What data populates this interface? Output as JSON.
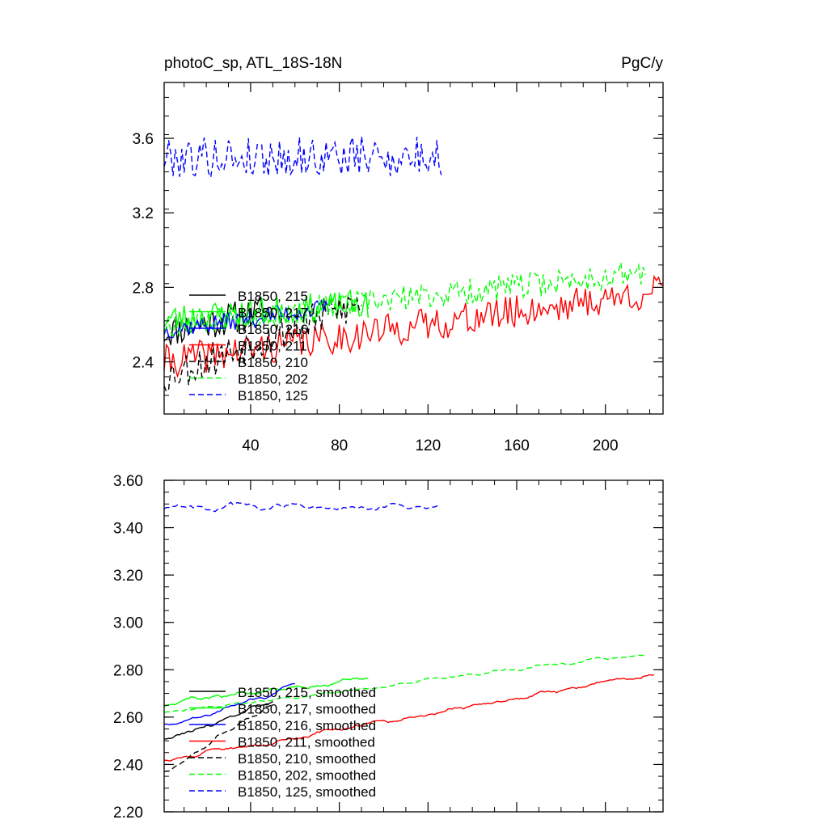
{
  "chart_data": [
    {
      "type": "line",
      "title_left": "photoC_sp, ATL_18S-18N",
      "title_right": "PgC/y",
      "xlim": [
        1,
        226
      ],
      "ylim": [
        2.12,
        3.9
      ],
      "xticks": [
        40,
        80,
        120,
        160,
        200
      ],
      "yticks": [
        2.4,
        2.8,
        3.2,
        3.6
      ],
      "ytick_labels": [
        "2.4",
        "2.8",
        "3.2",
        "3.6"
      ],
      "series": [
        {
          "name": "B1850, 215",
          "color": "#000000",
          "dash": "solid",
          "n": 50,
          "base": 2.56,
          "trend": 0.12,
          "noise": 0.09,
          "seed": 11
        },
        {
          "name": "B1850, 217",
          "color": "#00ff00",
          "dash": "solid",
          "n": 93,
          "base": 2.63,
          "trend": 0.08,
          "noise": 0.08,
          "seed": 23
        },
        {
          "name": "B1850, 216",
          "color": "#0000ff",
          "dash": "solid",
          "n": 75,
          "base": 2.57,
          "trend": 0.12,
          "noise": 0.05,
          "seed": 37
        },
        {
          "name": "B1850, 211",
          "color": "#ff0000",
          "dash": "solid",
          "n": 226,
          "base": 2.4,
          "trend": 0.38,
          "noise": 0.09,
          "seed": 41
        },
        {
          "name": "B1850, 210",
          "color": "#000000",
          "dash": "dash",
          "n": 90,
          "base": 2.32,
          "trend": 0.4,
          "noise": 0.1,
          "seed": 53
        },
        {
          "name": "B1850, 202",
          "color": "#00ff00",
          "dash": "dash",
          "n": 218,
          "base": 2.6,
          "trend": 0.28,
          "noise": 0.07,
          "seed": 67
        },
        {
          "name": "B1850, 125",
          "color": "#0000ff",
          "dash": "dash",
          "n": 126,
          "base": 3.5,
          "trend": 0.0,
          "noise": 0.11,
          "seed": 79
        }
      ]
    },
    {
      "type": "line",
      "xlim": [
        1,
        226
      ],
      "ylim": [
        2.2,
        3.6
      ],
      "xticks": [
        40,
        80,
        120,
        160,
        200
      ],
      "yticks": [
        2.2,
        2.4,
        2.6,
        2.8,
        3.0,
        3.2,
        3.4,
        3.6
      ],
      "ytick_labels": [
        "2.20",
        "2.40",
        "2.60",
        "2.80",
        "3.00",
        "3.20",
        "3.40",
        "3.60"
      ],
      "series": [
        {
          "name": "B1850, 215, smoothed",
          "color": "#000000",
          "dash": "solid",
          "n": 50,
          "base": 2.5,
          "trend": 0.17,
          "noise": 0.025,
          "seed": 111
        },
        {
          "name": "B1850, 217, smoothed",
          "color": "#00ff00",
          "dash": "solid",
          "n": 93,
          "base": 2.66,
          "trend": 0.1,
          "noise": 0.03,
          "seed": 123
        },
        {
          "name": "B1850, 216, smoothed",
          "color": "#0000ff",
          "dash": "solid",
          "n": 60,
          "base": 2.56,
          "trend": 0.17,
          "noise": 0.025,
          "seed": 137
        },
        {
          "name": "B1850, 211, smoothed",
          "color": "#ff0000",
          "dash": "solid",
          "n": 222,
          "base": 2.42,
          "trend": 0.36,
          "noise": 0.025,
          "seed": 141
        },
        {
          "name": "B1850, 210, smoothed",
          "color": "#000000",
          "dash": "dash",
          "n": 50,
          "base": 2.37,
          "trend": 0.28,
          "noise": 0.03,
          "seed": 153
        },
        {
          "name": "B1850, 202, smoothed",
          "color": "#00ff00",
          "dash": "dash",
          "n": 218,
          "base": 2.62,
          "trend": 0.25,
          "noise": 0.02,
          "seed": 167
        },
        {
          "name": "B1850, 125, smoothed",
          "color": "#0000ff",
          "dash": "dash",
          "n": 125,
          "base": 3.49,
          "trend": 0.0,
          "noise": 0.04,
          "seed": 179
        }
      ]
    }
  ]
}
